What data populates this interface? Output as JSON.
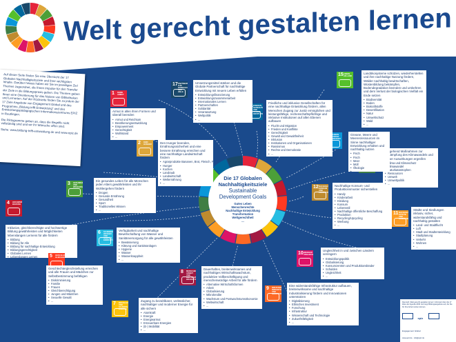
{
  "title": "Welt gerecht gestalten lernen",
  "intro": {
    "paragraphs": [
      "Auf dieser Seite finden Sie eine Übersicht der 17 Globalen Nachhaltigkeitsziele und ihrer wichtigsten Inhalte. Darüber hinaus haben wir Sie im jeweiligen Ziel Themen zugeordnet, die Ihnen Impulse für den Transfer der Ziele in die Bildungspraxis geben. Die Themen geben Ihnen eine Orientierung für das Nutzen von Bibliotheken und Lernorten. Auf der Rückseite finden Sie zu jedem der 17 Ziele Angebote von Engagement Global und des Programms „Bildung trifft Entwicklung“ und des Entwicklungspädagogischen Informationszentrums EPIZ in Reutlingen.",
      "Die Piktogramme geben an, dass die Begriffe nicht vollständig sind und wir Ihr Wünsche offen sind.",
      "Siehe: www.bildung-trifft-entwicklung.de und www.epiz.de"
    ]
  },
  "center": {
    "line1": "Die 17 Globalen",
    "line2": "Nachhaltigkeitsziele",
    "line3": "Sustainable",
    "line4": "Development Goals",
    "keywords": [
      "Gutes Leben",
      "Menschenrechte",
      "Nachhaltige Entwicklung",
      "Transformation",
      "Weltgerechtheit"
    ],
    "more": "..."
  },
  "goals": [
    {
      "num": "1",
      "label": "Keine Armut",
      "color": "#e5243b",
      "intro": "Armut in allen ihren Formen und überall beenden",
      "items": [
        "Armut und Reichtum",
        "Bevölkerungsentwicklung",
        "Empowerment",
        "Gerechtigkeit",
        "Wohlstand",
        "..."
      ]
    },
    {
      "num": "2",
      "label": "Kein Hunger",
      "color": "#dda63a",
      "intro": "Den Hunger beenden, Ernährungssicherheit und eine bessere Ernährung erreichen und eine nachhaltige Landwirtschaft fördern",
      "items": [
        "Agrarprodukte Bananen, Brot, Fleisch, Fisch, Gemüse, Getreide, Kaffee, Kakao, Kartoffeln, Zucker etc.",
        "Hunger",
        "Kochen",
        "Landraub",
        "Landwirtschaft",
        "Welternährung",
        "..."
      ]
    },
    {
      "num": "3",
      "label": "Gesundheit und Wohlergehen",
      "color": "#4c9f38",
      "intro": "Ein gesundes Leben für alle Menschen jeden Alters gewährleisten und ihr Wohlergehen fördern",
      "items": [
        "Drogen",
        "Gesunde Ernährung",
        "Gesundheit",
        "Sport",
        "Traditionelles Wissen",
        "..."
      ]
    },
    {
      "num": "4",
      "label": "Hochwertige Bildung",
      "color": "#c5192d",
      "intro": "Inklusive, gleichberechtigte und hochwertige Bildung gewährleisten und Möglichkeiten lebenslangen Lernens für alle fördern",
      "items": [
        "Bildung",
        "Bildung für Alle",
        "Bildung für nachhaltige Entwicklung",
        "Bildungsgerechtigkeit",
        "Globales Lernen",
        "Lebenslanges Lernen",
        "Schule",
        "..."
      ]
    },
    {
      "num": "5",
      "label": "Geschlechter-gleichheit",
      "color": "#ff3a21",
      "intro": "Geschlechtergleichstellung erreichen und alle Frauen und Mädchen zur Selbstbestimmung befähigen",
      "items": [
        "Diskriminierung",
        "Familie",
        "Frauen",
        "Gleichberechtigung",
        "Jungen und Mädchen",
        "Sexuelle Gewalt",
        "..."
      ]
    },
    {
      "num": "6",
      "label": "Sauberes Wasser und Sanitär-einrichtungen",
      "color": "#26bde2",
      "intro": "Verfügbarkeit und nachhaltige Bewirtschaftung von Wasser und Sanitärversorgung für alle gewährleisten",
      "items": [
        "Bewässerung",
        "Klärung und Sanitäranlagen",
        "Hygiene",
        "Wasser",
        "Wasserknappheit",
        "..."
      ]
    },
    {
      "num": "7",
      "label": "Bezahlbare und saubere Energie",
      "color": "#fcc30b",
      "intro": "Zugang zu bezahlbarer, verlässlicher, nachhaltiger und moderner Energie für alle sichern",
      "items": [
        "Atomkraft",
        "Energie",
        "Energiearmut",
        "Erneuerbare Energien",
        "(E-) Mobilität",
        "..."
      ]
    },
    {
      "num": "8",
      "label": "Menschenwürdige Arbeit und Wirtschafts-wachstum",
      "color": "#a21942",
      "intro": "Dauerhaftes, breitenwirksames und nachhaltiges Wirtschaftswachstum, produktive Vollbeschäftigung und menschenwürdige Arbeit für alle fördern",
      "items": [
        "Alternative Wirtschaftsformen",
        "Arbeit",
        "Globalisierung",
        "Mikrokredite",
        "Wachstum und Postwachstumsökonomie",
        "Weltwirtschaft",
        "..."
      ]
    },
    {
      "num": "9",
      "label": "Industrie, Innovation und Infrastruktur",
      "color": "#fd6925",
      "intro": "Eine widerstandsfähige Infrastruktur aufbauen, breitenwirksame und nachhaltige Industrialisierung fördern und Innovationen unterstützen",
      "items": [
        "Digitalisierung",
        "Ethisches Investment",
        "Forschung",
        "Infrastruktur",
        "Wissenschaft und Technologie",
        "Zukunftsfähigkeit",
        "..."
      ]
    },
    {
      "num": "10",
      "label": "Weniger Ungleichheiten",
      "color": "#dd1367",
      "intro": "Ungleichheit in und zwischen Ländern verringern",
      "items": [
        "Entwicklungspolitik",
        "Globalisierung",
        "Konsumzentren und Produktionsländer",
        "Schulden",
        "Ungleichheit",
        "..."
      ]
    },
    {
      "num": "11",
      "label": "Nachhaltige Städte und Gemeinden",
      "color": "#fd9d24",
      "intro": "Städte und Siedlungen inklusiv, sicher, widerstandsfähig und nachhaltig gestalten",
      "items": [
        "Land- und Stadtflucht",
        "Luft",
        "Stadt und Stadtentwicklung",
        "Stadtplanung",
        "Verkehr",
        "Wohnen",
        "..."
      ]
    },
    {
      "num": "12",
      "label": "Nachhaltige/r Konsum und Produktion",
      "color": "#bf8b2e",
      "intro": "Nachhaltige Konsum- und Produktionsmuster sicherstellen",
      "items": [
        "Handy",
        "Kinderarbeit",
        "Kleidung",
        "Konsum",
        "Lebensstil",
        "Nachhaltige öffentliche Beschaffung",
        "Produktion",
        "Recycling/Upcycling",
        "Werbung",
        "..."
      ]
    },
    {
      "num": "13",
      "label": "Maßnahmen zum Klimaschutz",
      "color": "#3f7e44",
      "intro": "Umgehend Maßnahmen zur Bekämpfung des Klimawandels und seiner Auswirkungen ergreifen",
      "items": [
        "Klima und Klimaschutz",
        "Klimawandel",
        "Naturkatastrophen",
        "Ressourcen",
        "Umwelt",
        "Umweltpolitik",
        "..."
      ]
    },
    {
      "num": "14",
      "label": "Leben unter Wasser",
      "color": "#0a97d9",
      "intro": "Ozeane, Meere und Meeresressourcen im Sinne nachhaltiger Entwicklung erhalten und nachhaltig nutzen",
      "items": [
        "Fisch",
        "Fisch",
        "Meer",
        "Müll",
        "Ökologie",
        "..."
      ]
    },
    {
      "num": "15",
      "label": "Leben an Land",
      "color": "#56c02b",
      "intro": "Landökosysteme schützen, wiederherstellen und ihre nachhaltige Nutzung fördern, Wälder nachhaltig bewirtschaften, Wüstenbildung bekämpfen, Bodendegradation beenden und umkehren und dem Verlust der biologischen Vielfalt ein Ende setzen",
      "items": [
        "Biodiversität",
        "Boden",
        "Biokraftstoffe",
        "Desertifikation",
        "Natur",
        "Umweltschutz",
        "Wald",
        "..."
      ]
    },
    {
      "num": "16",
      "label": "Frieden, Gerechtigkeit und starke Institutionen",
      "color": "#00689d",
      "intro": "Friedliche und inklusive Gesellschaften für eine nachhaltige Entwicklung fördern, allen Menschen Zugang zur Justiz ermöglichen und leistungsfähige, rechenschaftspflichtige und inklusive Institutionen auf allen Ebenen aufbauen",
      "items": [
        "Flucht und Migration",
        "Frieden und Konflikte",
        "Gerechtigkeit",
        "Gewalt und Gewaltfreiheit",
        "Inklusion",
        "Institutionen und Organisationen",
        "Rassismus",
        "Rechte und Demokratie",
        "..."
      ]
    },
    {
      "num": "17",
      "label": "Partnerschaften zur Erreichung der Ziele",
      "color": "#19486a",
      "intro": "Umsetzungsmittel stärken und die Globale Partnerschaft für nachhaltige Entwicklung mit neuem Leben erfüllen",
      "items": [
        "Entwicklungsfinanzierung",
        "Entwicklungszusammenarbeit",
        "Internationales Lernen",
        "Partnerschaften",
        "Solidarität",
        "Verantwortung",
        "Weltpolitik",
        "..."
      ]
    }
  ],
  "footer": {
    "text": "Das Heft „Welt gerecht gestalten lernen“ informiert über die 17 Ziele der Agenda 2030 und zeigt Bildungsangebote auf, die Sie für Ihre Arbeit nutzen können.",
    "org1": "epiz",
    "org2": "Engagement Global",
    "contact": "www.epiz.de · info@epiz.de"
  }
}
